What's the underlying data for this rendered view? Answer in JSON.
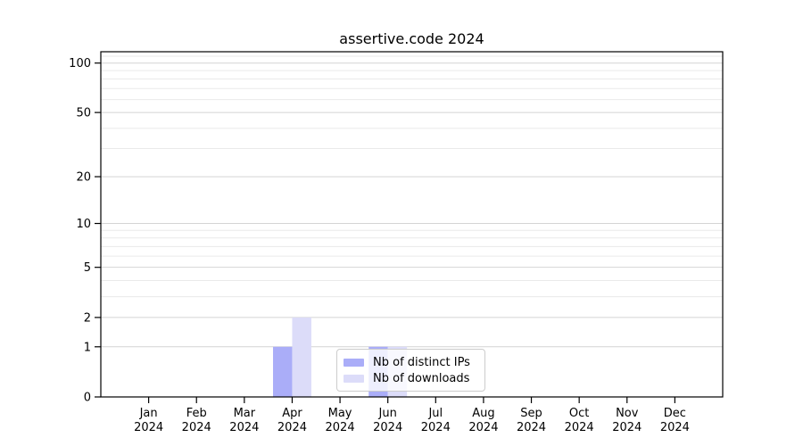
{
  "title": "assertive.code 2024",
  "chart_data": {
    "type": "bar",
    "title": "assertive.code 2024",
    "categories": [
      "Jan",
      "Feb",
      "Mar",
      "Apr",
      "May",
      "Jun",
      "Jul",
      "Aug",
      "Sep",
      "Oct",
      "Nov",
      "Dec"
    ],
    "year_label": "2024",
    "series": [
      {
        "name": "Nb of distinct IPs",
        "color": "#aaadf8",
        "values": [
          0,
          0,
          0,
          1,
          0,
          1,
          0,
          0,
          0,
          0,
          0,
          0
        ]
      },
      {
        "name": "Nb of downloads",
        "color": "#dcdcf9",
        "values": [
          0,
          0,
          0,
          2,
          0,
          1,
          0,
          0,
          0,
          0,
          0,
          0
        ]
      }
    ],
    "y_scale": "log10(1+y)",
    "y_major_ticks": [
      0,
      1,
      2,
      5,
      10,
      20,
      50,
      100
    ],
    "y_minor_ticks": [
      3,
      4,
      6,
      7,
      8,
      9,
      30,
      40,
      60,
      70,
      80,
      90,
      110
    ],
    "ylim": [
      0,
      117
    ],
    "grid": "horizontal",
    "legend_position": "inside-lower-center",
    "colors": {
      "axis": "#000000",
      "major_grid": "#d4d4d4",
      "minor_grid": "#eaeaea",
      "background": "#ffffff"
    }
  }
}
